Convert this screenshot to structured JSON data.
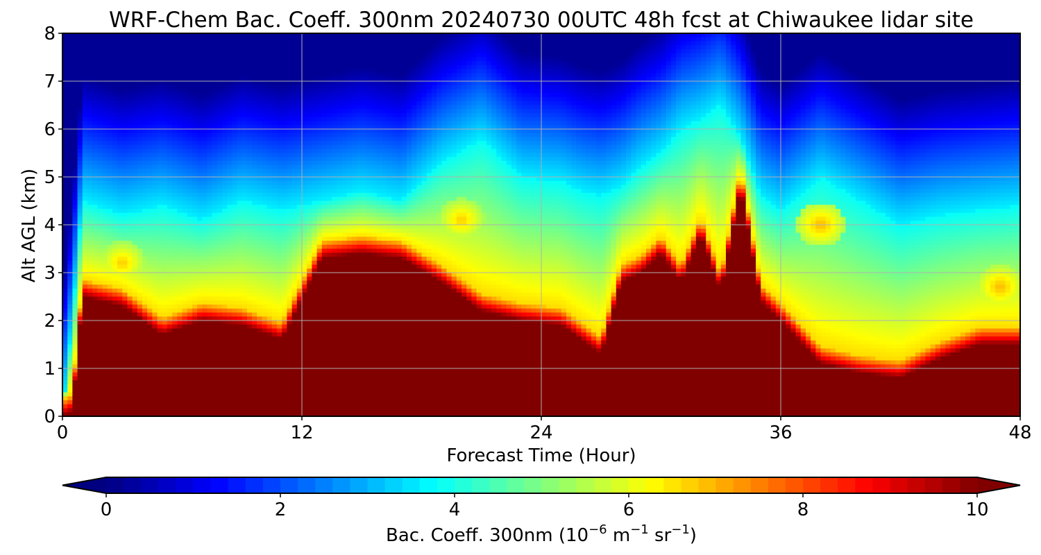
{
  "chart_data": {
    "type": "heatmap",
    "title": "WRF-Chem Bac. Coeff. 300nm  20240730 00UTC 48h fcst at Chiwaukee lidar site",
    "xlabel": "Forecast Time (Hour)",
    "ylabel": "Alt AGL (km)",
    "xlim": [
      0,
      48
    ],
    "ylim": [
      0,
      8
    ],
    "xticks": [
      0,
      12,
      24,
      36,
      48
    ],
    "yticks": [
      0,
      1,
      2,
      3,
      4,
      5,
      6,
      7,
      8
    ],
    "grid": true,
    "colorbar": {
      "label_main": "Bac. Coeff. 300nm  (10",
      "label_exp1": "−6",
      "label_mid": " m",
      "label_exp2": "−1",
      "label_mid2": " sr",
      "label_exp3": "−1",
      "label_end": ")",
      "ticks": [
        0,
        2,
        4,
        6,
        8,
        10
      ],
      "vmin": 0,
      "vmax": 10,
      "colormap": "jet",
      "extend": "both"
    },
    "z_units": "1e-6 m^-1 sr^-1",
    "x_hours": [
      0,
      0.5,
      1,
      3,
      5,
      7,
      9,
      11,
      13,
      15,
      17,
      19,
      21,
      23,
      25,
      26,
      27,
      28,
      29,
      30,
      31,
      32,
      33,
      34,
      35,
      36,
      38,
      40,
      42,
      44,
      46,
      48
    ],
    "dense_layer_top_km": [
      0,
      0.1,
      2.5,
      2.3,
      1.7,
      2.0,
      1.9,
      1.6,
      3.3,
      3.4,
      3.3,
      2.8,
      2.2,
      2.0,
      1.9,
      1.6,
      1.3,
      2.8,
      3.0,
      3.4,
      2.8,
      3.8,
      2.6,
      4.8,
      2.4,
      2.0,
      1.1,
      0.9,
      0.8,
      1.2,
      1.5,
      1.5
    ],
    "plume_top_km": [
      0,
      2.0,
      4.5,
      4.2,
      4.4,
      4.1,
      4.5,
      4.3,
      4.5,
      4.7,
      4.5,
      5.3,
      5.8,
      5.0,
      4.9,
      4.7,
      4.6,
      4.8,
      5.2,
      5.5,
      6.0,
      6.2,
      6.5,
      5.8,
      4.6,
      4.3,
      5.0,
      4.5,
      4.0,
      4.2,
      4.3,
      4.4
    ],
    "enhanced_patches": [
      {
        "hour": 3,
        "alt_km": 3.2,
        "value": 6.8
      },
      {
        "hour": 20,
        "alt_km": 4.1,
        "value": 6.8
      },
      {
        "hour": 38,
        "alt_km": 4.0,
        "value": 7.0
      },
      {
        "hour": 47,
        "alt_km": 2.7,
        "value": 7.0
      }
    ]
  }
}
